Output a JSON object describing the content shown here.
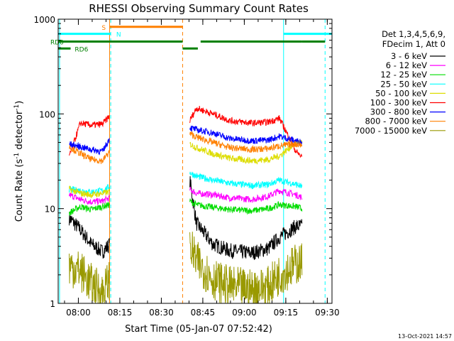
{
  "chart_data": {
    "type": "line",
    "title": "RHESSI Observing Summary Count Rates",
    "xlabel": "Start Time (05-Jan-07 07:52:42)",
    "ylabel_main": "Count Rate (s",
    "ylabel_sup1": "-1",
    "ylabel_mid": " detector",
    "ylabel_sup2": "-1",
    "ylabel_end": ")",
    "x_unit": "minutes after 07:52:42",
    "xlim": [
      0,
      99
    ],
    "ylim": [
      1,
      1000
    ],
    "yscale": "log",
    "x_ticks": [
      {
        "t": 7.3,
        "label": "08:00"
      },
      {
        "t": 22.3,
        "label": "08:15"
      },
      {
        "t": 37.3,
        "label": "08:30"
      },
      {
        "t": 52.3,
        "label": "08:45"
      },
      {
        "t": 67.3,
        "label": "09:00"
      },
      {
        "t": 82.3,
        "label": "09:15"
      },
      {
        "t": 97.3,
        "label": "09:30"
      }
    ],
    "y_ticks": [
      {
        "v": 1,
        "label": "1"
      },
      {
        "v": 10,
        "label": "10"
      },
      {
        "v": 100,
        "label": "100"
      },
      {
        "v": 1000,
        "label": "1000"
      }
    ],
    "legend_placement": "right",
    "legend_header": [
      "Det 1,3,4,5,6,9,",
      "FDecim 1, Att 0"
    ],
    "segments": [
      [
        4.0,
        18.6
      ],
      [
        47.6,
        88.2
      ]
    ],
    "series": [
      {
        "name": "3 - 6 keV",
        "color": "#000000",
        "seg1": [
          [
            4,
            8
          ],
          [
            8,
            6
          ],
          [
            12,
            4.2
          ],
          [
            16,
            3.5
          ],
          [
            18.6,
            4.2
          ]
        ],
        "seg2": [
          [
            47.6,
            20
          ],
          [
            50,
            7
          ],
          [
            56,
            4.2
          ],
          [
            62,
            3.6
          ],
          [
            70,
            3.4
          ],
          [
            76,
            3.8
          ],
          [
            80,
            5
          ],
          [
            86,
            6.5
          ],
          [
            88.2,
            6.5
          ]
        ]
      },
      {
        "name": "6 - 12 keV",
        "color": "#ff00ff",
        "seg1": [
          [
            4,
            14
          ],
          [
            8,
            12.5
          ],
          [
            12,
            11.8
          ],
          [
            16,
            12
          ],
          [
            18.6,
            13
          ]
        ],
        "seg2": [
          [
            47.6,
            16
          ],
          [
            50,
            14.5
          ],
          [
            56,
            14
          ],
          [
            62,
            13
          ],
          [
            70,
            12.5
          ],
          [
            76,
            13.5
          ],
          [
            80,
            15.5
          ],
          [
            86,
            14
          ],
          [
            88.2,
            13
          ]
        ]
      },
      {
        "name": "12 - 25 keV",
        "color": "#00dd00",
        "seg1": [
          [
            4,
            9
          ],
          [
            8,
            10.5
          ],
          [
            12,
            9.8
          ],
          [
            16,
            10.5
          ],
          [
            18.6,
            11
          ]
        ],
        "seg2": [
          [
            47.6,
            12
          ],
          [
            50,
            11
          ],
          [
            56,
            10.3
          ],
          [
            62,
            9.8
          ],
          [
            70,
            9.5
          ],
          [
            76,
            10
          ],
          [
            80,
            11
          ],
          [
            86,
            10.5
          ],
          [
            88.2,
            10
          ]
        ]
      },
      {
        "name": "25 - 50 keV",
        "color": "#00ffff",
        "seg1": [
          [
            4,
            16
          ],
          [
            8,
            15.5
          ],
          [
            12,
            15
          ],
          [
            16,
            15.5
          ],
          [
            18.6,
            17
          ]
        ],
        "seg2": [
          [
            47.6,
            24
          ],
          [
            50,
            22
          ],
          [
            56,
            20
          ],
          [
            62,
            18.5
          ],
          [
            70,
            17.5
          ],
          [
            76,
            18
          ],
          [
            80,
            20
          ],
          [
            86,
            18
          ],
          [
            88.2,
            17
          ]
        ]
      },
      {
        "name": "50 - 100 keV",
        "color": "#dddd00",
        "seg1": [
          [
            4,
            16
          ],
          [
            8,
            14.5
          ],
          [
            12,
            14
          ],
          [
            16,
            14.5
          ],
          [
            18.6,
            15
          ]
        ],
        "seg2": [
          [
            47.6,
            48
          ],
          [
            50,
            44
          ],
          [
            56,
            38
          ],
          [
            62,
            34
          ],
          [
            70,
            32
          ],
          [
            76,
            33
          ],
          [
            80,
            36
          ],
          [
            86,
            50
          ],
          [
            88.2,
            50
          ]
        ]
      },
      {
        "name": "100 - 300 keV",
        "color": "#ff0000",
        "seg1": [
          [
            4,
            35
          ],
          [
            8,
            80
          ],
          [
            12,
            76
          ],
          [
            16,
            78
          ],
          [
            18.6,
            95
          ]
        ],
        "seg2": [
          [
            47.6,
            85
          ],
          [
            50,
            115
          ],
          [
            56,
            100
          ],
          [
            62,
            85
          ],
          [
            70,
            80
          ],
          [
            76,
            82
          ],
          [
            80,
            90
          ],
          [
            86,
            40
          ],
          [
            88.2,
            35
          ]
        ]
      },
      {
        "name": "300 - 800 keV",
        "color": "#0000ff",
        "seg1": [
          [
            4,
            48
          ],
          [
            8,
            45
          ],
          [
            12,
            42
          ],
          [
            16,
            40
          ],
          [
            18.6,
            55
          ]
        ],
        "seg2": [
          [
            47.6,
            72
          ],
          [
            50,
            68
          ],
          [
            56,
            63
          ],
          [
            62,
            55
          ],
          [
            70,
            52
          ],
          [
            76,
            53
          ],
          [
            80,
            58
          ],
          [
            86,
            52
          ],
          [
            88.2,
            50
          ]
        ]
      },
      {
        "name": "800 - 7000 keV",
        "color": "#ff8000",
        "seg1": [
          [
            4,
            45
          ],
          [
            8,
            38
          ],
          [
            12,
            33
          ],
          [
            16,
            32
          ],
          [
            18.6,
            40
          ]
        ],
        "seg2": [
          [
            47.6,
            62
          ],
          [
            50,
            57
          ],
          [
            56,
            50
          ],
          [
            62,
            44
          ],
          [
            70,
            42
          ],
          [
            76,
            43
          ],
          [
            80,
            46
          ],
          [
            86,
            48
          ],
          [
            88.2,
            47
          ]
        ]
      },
      {
        "name": "7000 - 15000 keV",
        "color": "#999900",
        "seg1": [
          [
            4,
            2.5
          ],
          [
            8,
            2.2
          ],
          [
            12,
            1.6
          ],
          [
            16,
            1.3
          ],
          [
            18.6,
            1.8
          ]
        ],
        "seg2": [
          [
            47.6,
            4
          ],
          [
            50,
            2.8
          ],
          [
            56,
            1.8
          ],
          [
            62,
            1.5
          ],
          [
            70,
            1.4
          ],
          [
            76,
            1.5
          ],
          [
            80,
            2
          ],
          [
            86,
            2.6
          ],
          [
            88.2,
            2.7
          ]
        ]
      }
    ],
    "flags": [
      {
        "label": "S",
        "color": "#ff8000",
        "y": 830,
        "ranges": [
          [
            18.6,
            45
          ]
        ]
      },
      {
        "label": "N",
        "color": "#00ffff",
        "y": 700,
        "ranges": [
          [
            -2,
            19.0
          ],
          [
            81.5,
            99
          ]
        ]
      },
      {
        "label": "RD0",
        "color": "#008000",
        "y": 580,
        "ranges": [
          [
            0,
            45
          ],
          [
            51.5,
            88.2
          ],
          [
            88.2,
            96.5
          ]
        ]
      },
      {
        "label": "RD6",
        "color": "#008000",
        "y": 490,
        "ranges": [
          [
            -2,
            4.5
          ],
          [
            45,
            50.5
          ]
        ]
      }
    ],
    "vlines": [
      {
        "t": 0.5,
        "color": "#00ffff",
        "style": "solid"
      },
      {
        "t": 18.6,
        "color": "#ff8000",
        "style": "solid"
      },
      {
        "t": 19.0,
        "color": "#00ffff",
        "style": "dashed"
      },
      {
        "t": 45.0,
        "color": "#ff8000",
        "style": "dashed"
      },
      {
        "t": 81.5,
        "color": "#00ffff",
        "style": "solid"
      },
      {
        "t": 96.5,
        "color": "#00ffff",
        "style": "dashed"
      }
    ],
    "timestamp": "13-Oct-2021 14:57"
  }
}
